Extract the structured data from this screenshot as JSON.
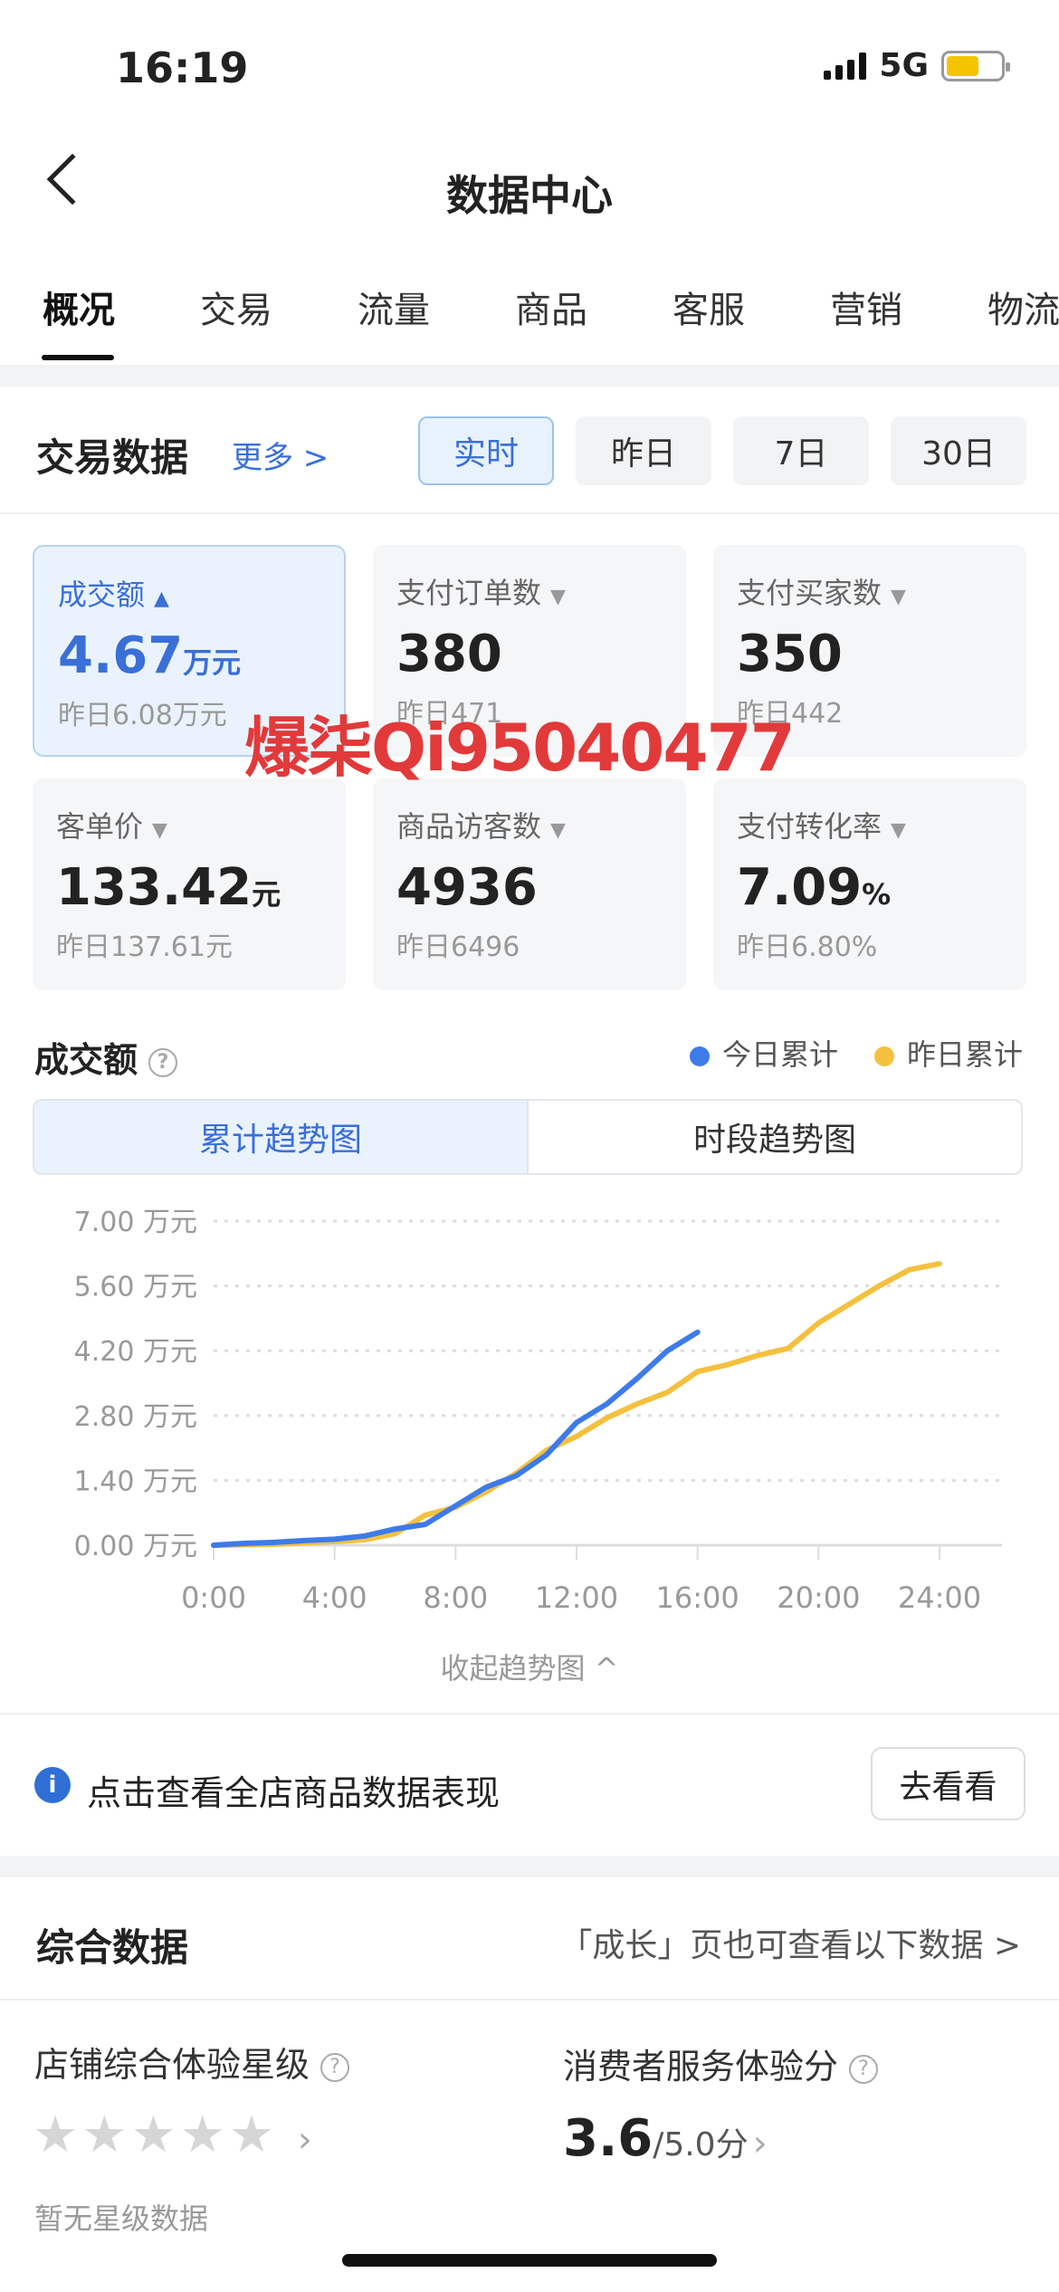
{
  "status": {
    "time": "16:19",
    "network": "5G"
  },
  "nav": {
    "title": "数据中心"
  },
  "tabs": [
    "概况",
    "交易",
    "流量",
    "商品",
    "客服",
    "营销",
    "物流"
  ],
  "trade": {
    "title": "交易数据",
    "more": "更多 >",
    "ranges": [
      "实时",
      "昨日",
      "7日",
      "30日"
    ],
    "active_range": "实时"
  },
  "metrics": [
    {
      "label": "成交额",
      "value": "4.67",
      "unit": "万元",
      "yesterday": "昨日6.08万元",
      "active": true
    },
    {
      "label": "支付订单数",
      "value": "380",
      "unit": "",
      "yesterday": "昨日471"
    },
    {
      "label": "支付买家数",
      "value": "350",
      "unit": "",
      "yesterday": "昨日442"
    },
    {
      "label": "客单价",
      "value": "133.42",
      "unit": "元",
      "yesterday": "昨日137.61元"
    },
    {
      "label": "商品访客数",
      "value": "4936",
      "unit": "",
      "yesterday": "昨日6496"
    },
    {
      "label": "支付转化率",
      "value": "7.09",
      "unit": "%",
      "yesterday": "昨日6.80%"
    }
  ],
  "watermark": "爆柒Qi95040477",
  "chart_section": {
    "title": "成交额",
    "toggle": [
      "累计趋势图",
      "时段趋势图"
    ],
    "collapse": "收起趋势图 ^"
  },
  "chart_data": {
    "type": "line",
    "x_ticks": [
      "0:00",
      "4:00",
      "8:00",
      "12:00",
      "16:00",
      "20:00",
      "24:00"
    ],
    "y_ticks": [
      "0.00 万元",
      "1.40 万元",
      "2.80 万元",
      "4.20 万元",
      "5.60 万元",
      "7.00 万元"
    ],
    "ylim": [
      0,
      7
    ],
    "xlim": [
      0,
      24
    ],
    "grid": "horizontal-dashed",
    "legend": "top-right",
    "series": [
      {
        "name": "今日累计",
        "color": "#3d7bea",
        "x": [
          0,
          1,
          2,
          3,
          4,
          5,
          6,
          7,
          8,
          9,
          10,
          11,
          12,
          13,
          14,
          15,
          16
        ],
        "y": [
          0,
          0.04,
          0.06,
          0.1,
          0.13,
          0.2,
          0.35,
          0.45,
          0.85,
          1.25,
          1.5,
          1.95,
          2.65,
          3.05,
          3.6,
          4.2,
          4.6
        ]
      },
      {
        "name": "昨日累计",
        "color": "#f4c03e",
        "x": [
          0,
          1,
          2,
          3,
          4,
          5,
          6,
          7,
          8,
          9,
          10,
          11,
          12,
          13,
          14,
          15,
          16,
          17,
          18,
          19,
          20,
          21,
          22,
          23,
          24
        ],
        "y": [
          0,
          0.01,
          0.02,
          0.05,
          0.08,
          0.12,
          0.25,
          0.65,
          0.82,
          1.15,
          1.55,
          2.05,
          2.35,
          2.75,
          3.05,
          3.3,
          3.75,
          3.9,
          4.1,
          4.25,
          4.8,
          5.2,
          5.6,
          5.95,
          6.08
        ]
      }
    ]
  },
  "info": {
    "text": "点击查看全店商品数据表现",
    "button": "去看看"
  },
  "overall": {
    "title": "综合数据",
    "hint": "「成长」页也可查看以下数据 >",
    "star_label": "店铺综合体验星级",
    "star_rating": 0,
    "star_empty": "暂无星级数据",
    "score_label": "消费者服务体验分",
    "score": "3.6",
    "score_max": "/5.0分"
  }
}
